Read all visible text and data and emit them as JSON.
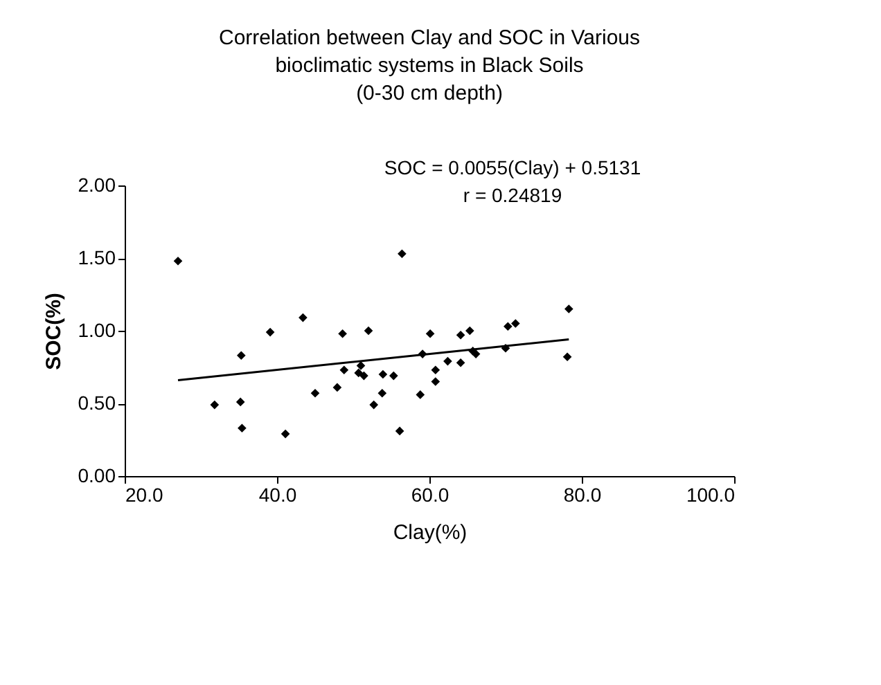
{
  "chart_data": {
    "type": "scatter",
    "title": "Correlation between Clay and SOC in Various\nbioclimatic systems in Black Soils\n(0-30 cm depth)",
    "xlabel": "Clay(%)",
    "ylabel": "SOC(%)",
    "annotations": [
      "SOC = 0.0055(Clay) + 0.5131",
      "r = 0.24819"
    ],
    "xlim": [
      20,
      100
    ],
    "ylim": [
      0,
      2
    ],
    "xticks": [
      {
        "value": 20,
        "label": "20.0"
      },
      {
        "value": 40,
        "label": "40.0"
      },
      {
        "value": 60,
        "label": "60.0"
      },
      {
        "value": 80,
        "label": "80.0"
      },
      {
        "value": 100,
        "label": "100.0"
      }
    ],
    "yticks": [
      {
        "value": 0,
        "label": "0.00"
      },
      {
        "value": 0.5,
        "label": "0.50"
      },
      {
        "value": 1,
        "label": "1.00"
      },
      {
        "value": 1.5,
        "label": "1.50"
      },
      {
        "value": 2,
        "label": "2.00"
      }
    ],
    "grid": false,
    "series": [
      {
        "type": "scatter",
        "marker": "diamond",
        "color": "#000000",
        "x": [
          27.0,
          31.8,
          35.3,
          35.2,
          35.4,
          39.1,
          41.1,
          43.4,
          45.0,
          47.9,
          48.6,
          48.8,
          50.7,
          51.4,
          51.0,
          52.0,
          52.7,
          53.8,
          53.9,
          55.3,
          56.1,
          56.4,
          58.8,
          59.1,
          60.1,
          60.8,
          60.8,
          62.4,
          64.1,
          64.1,
          65.3,
          65.7,
          66.1,
          70.0,
          70.3,
          71.3,
          78.3,
          78.1
        ],
        "values": [
          1.48,
          0.49,
          0.83,
          0.51,
          0.33,
          0.99,
          0.29,
          1.09,
          0.57,
          0.61,
          0.98,
          0.73,
          0.71,
          0.69,
          0.76,
          1.0,
          0.49,
          0.57,
          0.7,
          0.69,
          0.31,
          1.53,
          0.56,
          0.84,
          0.98,
          0.73,
          0.65,
          0.79,
          0.97,
          0.78,
          1.0,
          0.86,
          0.84,
          0.88,
          1.03,
          1.05,
          1.15,
          0.82
        ]
      },
      {
        "type": "line",
        "marker": "none",
        "line_style": "solid",
        "color": "#000000",
        "x": [
          27.0,
          78.3
        ],
        "values": [
          0.66,
          0.94
        ]
      }
    ]
  }
}
